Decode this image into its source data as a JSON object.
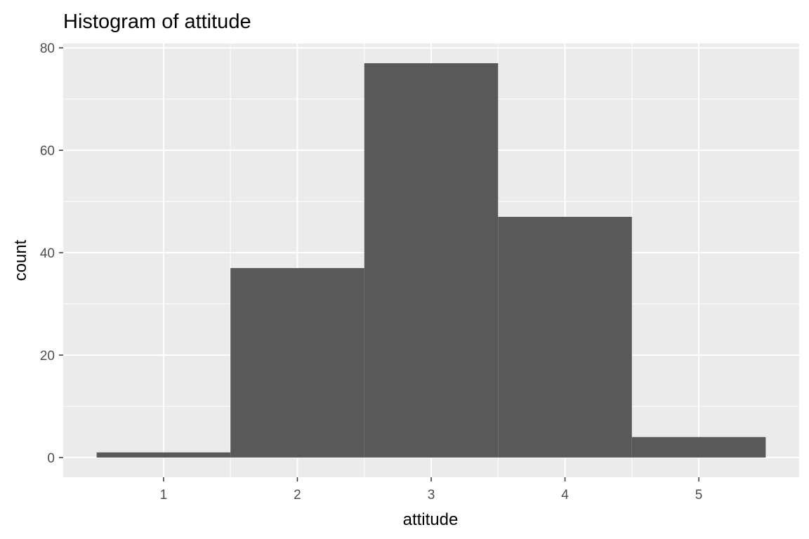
{
  "chart_data": {
    "type": "bar",
    "title": "Histogram of attitude",
    "xlabel": "attitude",
    "ylabel": "count",
    "categories": [
      "1",
      "2",
      "3",
      "4",
      "5"
    ],
    "bins": [
      {
        "x": 1,
        "count": 1
      },
      {
        "x": 2,
        "count": 37
      },
      {
        "x": 3,
        "count": 77
      },
      {
        "x": 4,
        "count": 47
      },
      {
        "x": 5,
        "count": 4
      }
    ],
    "values": [
      1,
      37,
      77,
      47,
      4
    ],
    "bin_width": 1,
    "xlim": [
      0.25,
      5.75
    ],
    "ylim": [
      -3.85,
      80.85
    ],
    "x_ticks": [
      1,
      2,
      3,
      4,
      5
    ],
    "y_ticks": [
      0,
      20,
      40,
      60,
      80
    ],
    "grid": true,
    "legend": "none",
    "colors": {
      "bar": "#595959",
      "panel": "#ebebeb",
      "grid": "#ffffff",
      "tick_text": "#4d4d4d",
      "tick_mark": "#333333"
    }
  }
}
